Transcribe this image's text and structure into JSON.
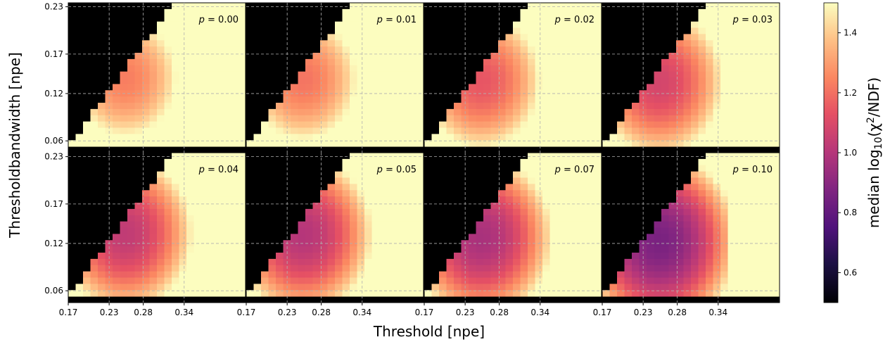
{
  "chart_data": {
    "type": "heatmap",
    "title": "",
    "xlabel": "Threshold [npe]",
    "ylabel": "Thresholdbandwidth [npe]",
    "colorbar": {
      "label": "median log₁₀(χ²/NDF)",
      "label_parts": {
        "prefix": "median log",
        "sub": "10",
        "mid": "(χ",
        "sup": "2",
        "suffix": "/NDF)"
      },
      "ticks": [
        "0.6",
        "0.8",
        "1.0",
        "1.2",
        "1.4"
      ],
      "tick_values": [
        0.6,
        0.8,
        1.0,
        1.2,
        1.4
      ],
      "range": [
        0.5,
        1.5
      ],
      "colormap": "magma",
      "masked_color": "#000000"
    },
    "x_ticks": [
      "0.17",
      "0.23",
      "0.28",
      "0.34"
    ],
    "x_tick_values": [
      0.17,
      0.23,
      0.28,
      0.34
    ],
    "x_range": [
      0.17,
      0.43
    ],
    "y_ticks": [
      "0.06",
      "0.12",
      "0.17",
      "0.23"
    ],
    "y_tick_values": [
      0.06,
      0.12,
      0.17,
      0.23
    ],
    "y_range": [
      0.045,
      0.235
    ],
    "grid": true,
    "grid_style": "dashed",
    "grid_color": "#b0b0b0",
    "layout": "2 rows x 4 columns",
    "panels": [
      {
        "label": "p = 0.00",
        "p_text": "p",
        "value_text": " = 0.00",
        "p": 0.0,
        "min": 1.23
      },
      {
        "label": "p = 0.01",
        "p_text": "p",
        "value_text": " = 0.01",
        "p": 0.01,
        "min": 1.21
      },
      {
        "label": "p = 0.02",
        "p_text": "p",
        "value_text": " = 0.02",
        "p": 0.02,
        "min": 1.14
      },
      {
        "label": "p = 0.03",
        "p_text": "p",
        "value_text": " = 0.03",
        "p": 0.03,
        "min": 1.08
      },
      {
        "label": "p = 0.04",
        "p_text": "p",
        "value_text": " = 0.04",
        "p": 0.04,
        "min": 1.03
      },
      {
        "label": "p = 0.05",
        "p_text": "p",
        "value_text": " = 0.05",
        "p": 0.05,
        "min": 1.0
      },
      {
        "label": "p = 0.07",
        "p_text": "p",
        "value_text": " = 0.07",
        "p": 0.07,
        "min": 0.97
      },
      {
        "label": "p = 0.10",
        "p_text": "p",
        "value_text": " = 0.10",
        "p": 0.1,
        "min": 0.86
      }
    ]
  }
}
